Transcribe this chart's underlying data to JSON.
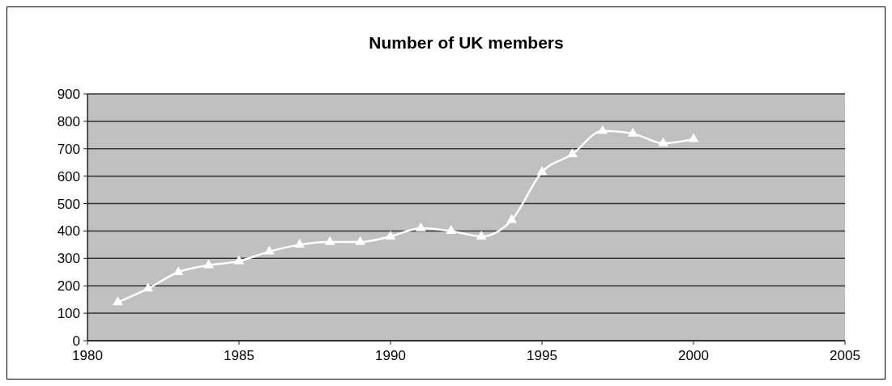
{
  "chart_data": {
    "type": "line",
    "title": "Number of UK members",
    "x": [
      1981,
      1982,
      1983,
      1984,
      1985,
      1986,
      1987,
      1988,
      1989,
      1990,
      1991,
      1992,
      1993,
      1994,
      1995,
      1996,
      1997,
      1998,
      1999,
      2000
    ],
    "series": [
      {
        "color": "#ffffff",
        "values": [
          140,
          190,
          250,
          275,
          290,
          325,
          350,
          360,
          360,
          380,
          410,
          400,
          380,
          440,
          615,
          680,
          765,
          755,
          720,
          735
        ]
      }
    ],
    "xlim": [
      1980,
      2005
    ],
    "xticks": [
      1980,
      1985,
      1990,
      1995,
      2000,
      2005
    ],
    "ylim": [
      0,
      900
    ],
    "yticks": [
      0,
      100,
      200,
      300,
      400,
      500,
      600,
      700,
      800,
      900
    ],
    "grid": "y",
    "marker": "triangle",
    "line_style": "solid"
  }
}
